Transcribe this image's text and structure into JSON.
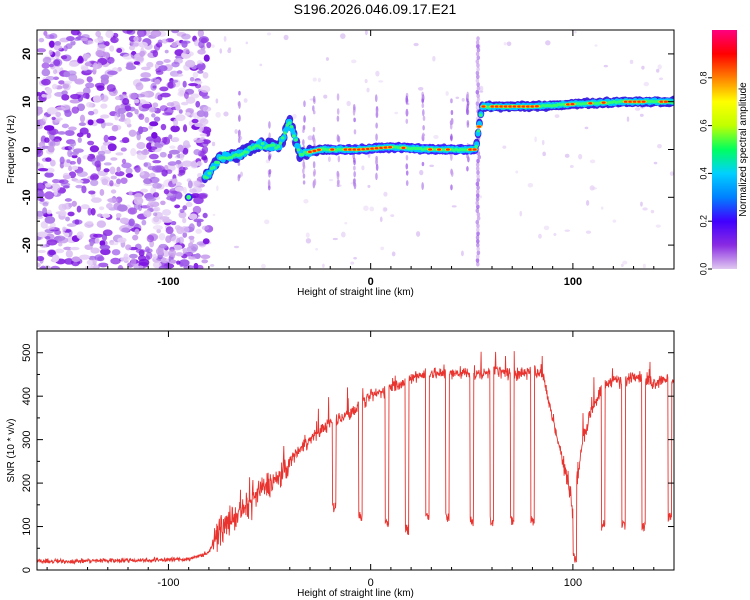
{
  "figure": {
    "title": "S196.2026.046.09.17.E21"
  },
  "chart_data": [
    {
      "type": "heatmap",
      "title": "",
      "xlabel": "Height of straight line (km)",
      "ylabel": "Frequency (Hz)",
      "xlim": [
        -165,
        150
      ],
      "ylim": [
        -25,
        25
      ],
      "xticks": [
        -100,
        0,
        100
      ],
      "yticks": [
        -20,
        -10,
        0,
        10,
        20
      ],
      "grid": false,
      "colorbar": {
        "label": "Normalized spectral amplitude",
        "range": [
          0,
          1
        ],
        "ticks": [
          0.0,
          0.2,
          0.4,
          0.6,
          0.8
        ],
        "colors": [
          "#e0c8f0",
          "#8a2be2",
          "#4000ff",
          "#0080ff",
          "#00d0ff",
          "#00ff60",
          "#c0ff00",
          "#ffff00",
          "#ff8000",
          "#ff0000",
          "#ff0080"
        ]
      },
      "track": [
        {
          "x": -92,
          "f": -10
        },
        {
          "x": -80,
          "f": -5
        },
        {
          "x": -75,
          "f": -2
        },
        {
          "x": -65,
          "f": -1
        },
        {
          "x": -55,
          "f": 1
        },
        {
          "x": -45,
          "f": 0.5
        },
        {
          "x": -40,
          "f": 6
        },
        {
          "x": -35,
          "f": -1
        },
        {
          "x": -25,
          "f": 0
        },
        {
          "x": -15,
          "f": 0
        },
        {
          "x": -5,
          "f": 0
        },
        {
          "x": 10,
          "f": 0.5
        },
        {
          "x": 30,
          "f": 0
        },
        {
          "x": 52,
          "f": 0
        },
        {
          "x": 55,
          "f": 9
        },
        {
          "x": 80,
          "f": 9
        },
        {
          "x": 100,
          "f": 9.5
        },
        {
          "x": 125,
          "f": 10
        },
        {
          "x": 150,
          "f": 10
        }
      ]
    },
    {
      "type": "line",
      "title": "",
      "xlabel": "Height of straight line (km)",
      "ylabel": "SNR (10 * v/v)",
      "xlim": [
        -165,
        150
      ],
      "ylim": [
        0,
        550
      ],
      "xticks": [
        -100,
        0,
        100
      ],
      "yticks": [
        0,
        100,
        200,
        300,
        400,
        500
      ],
      "grid": false,
      "line_color": "#e8332e",
      "series": [
        {
          "name": "SNR",
          "x": [
            -165,
            -150,
            -130,
            -110,
            -90,
            -80,
            -75,
            -70,
            -65,
            -60,
            -55,
            -50,
            -45,
            -40,
            -35,
            -30,
            -25,
            -20,
            -15,
            -10,
            -5,
            0,
            5,
            10,
            15,
            20,
            25,
            30,
            35,
            40,
            45,
            50,
            55,
            60,
            65,
            70,
            75,
            80,
            85,
            90,
            95,
            100,
            105,
            110,
            115,
            120,
            125,
            130,
            135,
            140,
            145,
            150
          ],
          "values": [
            20,
            20,
            22,
            23,
            25,
            40,
            90,
            110,
            130,
            150,
            180,
            200,
            210,
            250,
            280,
            300,
            320,
            340,
            350,
            360,
            380,
            400,
            410,
            420,
            430,
            440,
            450,
            455,
            450,
            450,
            455,
            450,
            450,
            460,
            455,
            450,
            455,
            460,
            450,
            350,
            250,
            150,
            300,
            380,
            420,
            440,
            430,
            450,
            440,
            430,
            440,
            440
          ]
        }
      ],
      "dip_markers": [
        {
          "x": -18,
          "y": 130
        },
        {
          "x": -5,
          "y": 110
        },
        {
          "x": 8,
          "y": 90
        },
        {
          "x": 18,
          "y": 80
        },
        {
          "x": 28,
          "y": 110
        },
        {
          "x": 38,
          "y": 110
        },
        {
          "x": 50,
          "y": 100
        },
        {
          "x": 60,
          "y": 100
        },
        {
          "x": 70,
          "y": 100
        },
        {
          "x": 80,
          "y": 100
        },
        {
          "x": 101,
          "y": 15
        },
        {
          "x": 115,
          "y": 90
        },
        {
          "x": 125,
          "y": 90
        },
        {
          "x": 135,
          "y": 90
        },
        {
          "x": 148,
          "y": 110
        }
      ]
    }
  ]
}
